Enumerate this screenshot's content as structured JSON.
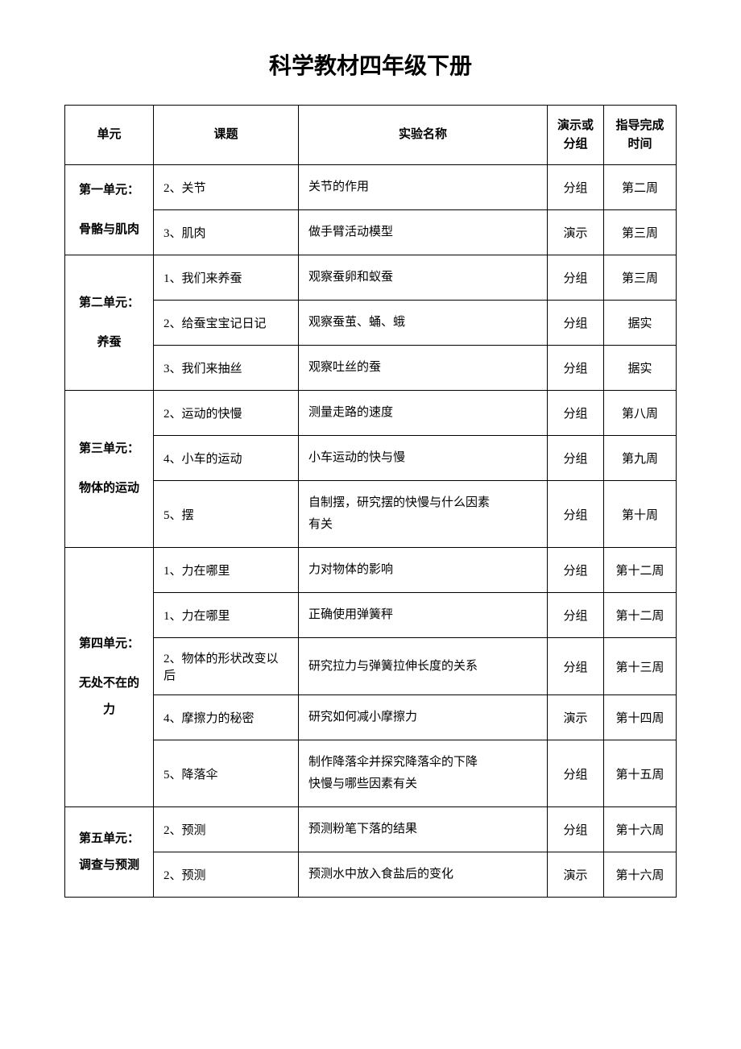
{
  "title": "科学教材四年级下册",
  "headers": {
    "unit": "单元",
    "topic": "课题",
    "experiment": "实验名称",
    "type": "演示或\n分组",
    "time": "指导完成\n时间"
  },
  "units": [
    {
      "name": "第一单元：\n\n骨骼与肌肉",
      "rows": [
        {
          "topic": "2、关节",
          "experiment": "关节的作用",
          "type": "分组",
          "time": "第二周"
        },
        {
          "topic": "3、肌肉",
          "experiment": "做手臂活动模型",
          "type": "演示",
          "time": "第三周"
        }
      ]
    },
    {
      "name": "第二单元：\n\n养蚕",
      "rows": [
        {
          "topic": "1、我们来养蚕",
          "experiment": "观察蚕卵和蚁蚕",
          "type": "分组",
          "time": "第三周"
        },
        {
          "topic": "2、给蚕宝宝记日记",
          "experiment": "观察蚕茧、蛹、蛾",
          "type": "分组",
          "time": "据实"
        },
        {
          "topic": "3、我们来抽丝",
          "experiment": "观察吐丝的蚕",
          "type": "分组",
          "time": "据实"
        }
      ]
    },
    {
      "name": "第三单元：\n\n物体的运动",
      "rows": [
        {
          "topic": "2、运动的快慢",
          "experiment": "测量走路的速度",
          "type": "分组",
          "time": "第八周"
        },
        {
          "topic": "4、小车的运动",
          "experiment": "小车运动的快与慢",
          "type": "分组",
          "time": "第九周"
        },
        {
          "topic": "5、摆",
          "experiment": "自制摆，研究摆的快慢与什么因素\n有关",
          "type": "分组",
          "time": "第十周"
        }
      ]
    },
    {
      "name": "第四单元：\n\n无处不在的力",
      "rows": [
        {
          "topic": "1、力在哪里",
          "experiment": "力对物体的影响",
          "type": "分组",
          "time": "第十二周"
        },
        {
          "topic": "1、力在哪里",
          "experiment": "正确使用弹簧秤",
          "type": "分组",
          "time": "第十二周"
        },
        {
          "topic": "2、物体的形状改变以后",
          "experiment": "研究拉力与弹簧拉伸长度的关系",
          "type": "分组",
          "time": "第十三周"
        },
        {
          "topic": "4、摩擦力的秘密",
          "experiment": "研究如何减小摩擦力",
          "type": "演示",
          "time": "第十四周"
        },
        {
          "topic": "5、降落伞",
          "experiment": "制作降落伞并探究降落伞的下降\n快慢与哪些因素有关",
          "type": "分组",
          "time": "第十五周"
        }
      ]
    },
    {
      "name": "第五单元：\n调查与预测",
      "rows": [
        {
          "topic": "2、预测",
          "experiment": "预测粉笔下落的结果",
          "type": "分组",
          "time": "第十六周"
        },
        {
          "topic": "2、预测",
          "experiment": "预测水中放入食盐后的变化",
          "type": "演示",
          "time": "第十六周"
        }
      ]
    }
  ]
}
